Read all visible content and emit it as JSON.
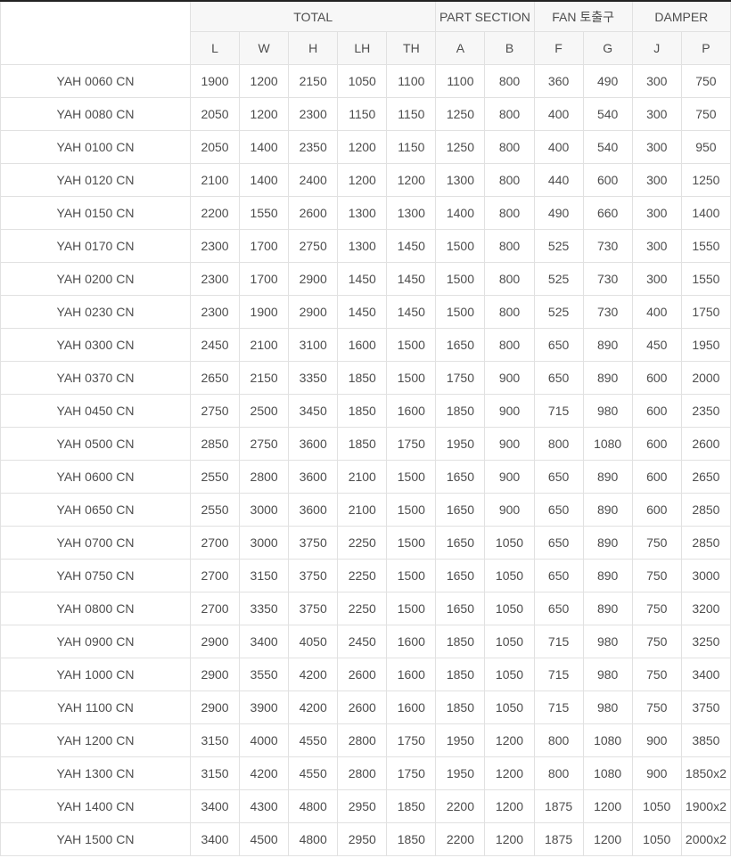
{
  "colors": {
    "header_bg": "#f7f7f7",
    "corner_bg": "#ffffff",
    "row_bg": "#ffffff",
    "border": "#e1e1e1",
    "top_border": "#222222",
    "text": "#4d4d4d"
  },
  "table": {
    "groups": [
      {
        "label": "",
        "colspan": 1,
        "rowspan": 2
      },
      {
        "label": "TOTAL",
        "colspan": 5
      },
      {
        "label": "PART SECTION",
        "colspan": 2
      },
      {
        "label": "FAN 토출구",
        "colspan": 2
      },
      {
        "label": "DAMPER",
        "colspan": 2
      }
    ],
    "columns": [
      "L",
      "W",
      "H",
      "LH",
      "TH",
      "A",
      "B",
      "F",
      "G",
      "J",
      "P"
    ],
    "rows": [
      {
        "model": "YAH 0060 CN",
        "values": [
          "1900",
          "1200",
          "2150",
          "1050",
          "1100",
          "1100",
          "800",
          "360",
          "490",
          "300",
          "750"
        ]
      },
      {
        "model": "YAH 0080 CN",
        "values": [
          "2050",
          "1200",
          "2300",
          "1150",
          "1150",
          "1250",
          "800",
          "400",
          "540",
          "300",
          "750"
        ]
      },
      {
        "model": "YAH 0100 CN",
        "values": [
          "2050",
          "1400",
          "2350",
          "1200",
          "1150",
          "1250",
          "800",
          "400",
          "540",
          "300",
          "950"
        ]
      },
      {
        "model": "YAH 0120 CN",
        "values": [
          "2100",
          "1400",
          "2400",
          "1200",
          "1200",
          "1300",
          "800",
          "440",
          "600",
          "300",
          "1250"
        ]
      },
      {
        "model": "YAH 0150 CN",
        "values": [
          "2200",
          "1550",
          "2600",
          "1300",
          "1300",
          "1400",
          "800",
          "490",
          "660",
          "300",
          "1400"
        ]
      },
      {
        "model": "YAH 0170 CN",
        "values": [
          "2300",
          "1700",
          "2750",
          "1300",
          "1450",
          "1500",
          "800",
          "525",
          "730",
          "300",
          "1550"
        ]
      },
      {
        "model": "YAH 0200 CN",
        "values": [
          "2300",
          "1700",
          "2900",
          "1450",
          "1450",
          "1500",
          "800",
          "525",
          "730",
          "300",
          "1550"
        ]
      },
      {
        "model": "YAH 0230 CN",
        "values": [
          "2300",
          "1900",
          "2900",
          "1450",
          "1450",
          "1500",
          "800",
          "525",
          "730",
          "400",
          "1750"
        ]
      },
      {
        "model": "YAH 0300 CN",
        "values": [
          "2450",
          "2100",
          "3100",
          "1600",
          "1500",
          "1650",
          "800",
          "650",
          "890",
          "450",
          "1950"
        ]
      },
      {
        "model": "YAH 0370 CN",
        "values": [
          "2650",
          "2150",
          "3350",
          "1850",
          "1500",
          "1750",
          "900",
          "650",
          "890",
          "600",
          "2000"
        ]
      },
      {
        "model": "YAH 0450 CN",
        "values": [
          "2750",
          "2500",
          "3450",
          "1850",
          "1600",
          "1850",
          "900",
          "715",
          "980",
          "600",
          "2350"
        ]
      },
      {
        "model": "YAH 0500 CN",
        "values": [
          "2850",
          "2750",
          "3600",
          "1850",
          "1750",
          "1950",
          "900",
          "800",
          "1080",
          "600",
          "2600"
        ]
      },
      {
        "model": "YAH 0600 CN",
        "values": [
          "2550",
          "2800",
          "3600",
          "2100",
          "1500",
          "1650",
          "900",
          "650",
          "890",
          "600",
          "2650"
        ]
      },
      {
        "model": "YAH 0650 CN",
        "values": [
          "2550",
          "3000",
          "3600",
          "2100",
          "1500",
          "1650",
          "900",
          "650",
          "890",
          "600",
          "2850"
        ]
      },
      {
        "model": "YAH 0700 CN",
        "values": [
          "2700",
          "3000",
          "3750",
          "2250",
          "1500",
          "1650",
          "1050",
          "650",
          "890",
          "750",
          "2850"
        ]
      },
      {
        "model": "YAH 0750 CN",
        "values": [
          "2700",
          "3150",
          "3750",
          "2250",
          "1500",
          "1650",
          "1050",
          "650",
          "890",
          "750",
          "3000"
        ]
      },
      {
        "model": "YAH 0800 CN",
        "values": [
          "2700",
          "3350",
          "3750",
          "2250",
          "1500",
          "1650",
          "1050",
          "650",
          "890",
          "750",
          "3200"
        ]
      },
      {
        "model": "YAH 0900 CN",
        "values": [
          "2900",
          "3400",
          "4050",
          "2450",
          "1600",
          "1850",
          "1050",
          "715",
          "980",
          "750",
          "3250"
        ]
      },
      {
        "model": "YAH 1000 CN",
        "values": [
          "2900",
          "3550",
          "4200",
          "2600",
          "1600",
          "1850",
          "1050",
          "715",
          "980",
          "750",
          "3400"
        ]
      },
      {
        "model": "YAH 1100 CN",
        "values": [
          "2900",
          "3900",
          "4200",
          "2600",
          "1600",
          "1850",
          "1050",
          "715",
          "980",
          "750",
          "3750"
        ]
      },
      {
        "model": "YAH 1200 CN",
        "values": [
          "3150",
          "4000",
          "4550",
          "2800",
          "1750",
          "1950",
          "1200",
          "800",
          "1080",
          "900",
          "3850"
        ]
      },
      {
        "model": "YAH 1300 CN",
        "values": [
          "3150",
          "4200",
          "4550",
          "2800",
          "1750",
          "1950",
          "1200",
          "800",
          "1080",
          "900",
          "1850x2"
        ]
      },
      {
        "model": "YAH 1400 CN",
        "values": [
          "3400",
          "4300",
          "4800",
          "2950",
          "1850",
          "2200",
          "1200",
          "1875",
          "1200",
          "1050",
          "1900x2"
        ]
      },
      {
        "model": "YAH 1500 CN",
        "values": [
          "3400",
          "4500",
          "4800",
          "2950",
          "1850",
          "2200",
          "1200",
          "1875",
          "1200",
          "1050",
          "2000x2"
        ]
      }
    ]
  }
}
